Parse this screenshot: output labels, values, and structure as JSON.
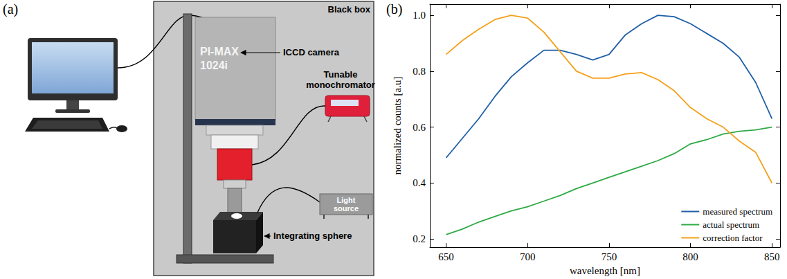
{
  "panels": {
    "a": "(a)",
    "b": "(b)"
  },
  "diagram": {
    "enclosure": "Black box",
    "camera": "ICCD camera",
    "camera_model": "PI-MAX 1024i",
    "monochromator": "Tunable monochromator",
    "light_source": "Light source",
    "sphere": "Integrating sphere"
  },
  "chart_data": {
    "type": "line",
    "xlabel": "wavelength [nm]",
    "ylabel": "normalized counts [a.u]",
    "x": [
      650,
      660,
      670,
      680,
      690,
      700,
      710,
      720,
      730,
      740,
      750,
      760,
      770,
      780,
      790,
      800,
      810,
      820,
      830,
      840,
      850
    ],
    "series": [
      {
        "name": "measured spectrum",
        "color": "#1f5fa6",
        "values": [
          0.49,
          0.56,
          0.63,
          0.71,
          0.78,
          0.83,
          0.875,
          0.875,
          0.86,
          0.84,
          0.86,
          0.93,
          0.97,
          1.0,
          0.995,
          0.97,
          0.935,
          0.9,
          0.85,
          0.76,
          0.63
        ]
      },
      {
        "name": "actual spectrum",
        "color": "#2eaa45",
        "values": [
          0.215,
          0.235,
          0.26,
          0.28,
          0.3,
          0.315,
          0.335,
          0.355,
          0.38,
          0.4,
          0.42,
          0.44,
          0.46,
          0.48,
          0.505,
          0.54,
          0.555,
          0.575,
          0.585,
          0.59,
          0.6
        ]
      },
      {
        "name": "correction factor",
        "color": "#f5a01a",
        "values": [
          0.86,
          0.91,
          0.95,
          0.985,
          1.0,
          0.99,
          0.94,
          0.87,
          0.8,
          0.775,
          0.775,
          0.79,
          0.795,
          0.77,
          0.73,
          0.67,
          0.63,
          0.6,
          0.55,
          0.51,
          0.4
        ]
      }
    ],
    "xlim": [
      640,
      855
    ],
    "ylim": [
      0.17,
      1.04
    ],
    "xticks": [
      650,
      700,
      750,
      800,
      850
    ],
    "yticks": [
      0.2,
      0.4,
      0.6,
      0.8,
      {
        "value": 1,
        "label": "1.0"
      }
    ],
    "grid": false,
    "legend": "lower right"
  }
}
